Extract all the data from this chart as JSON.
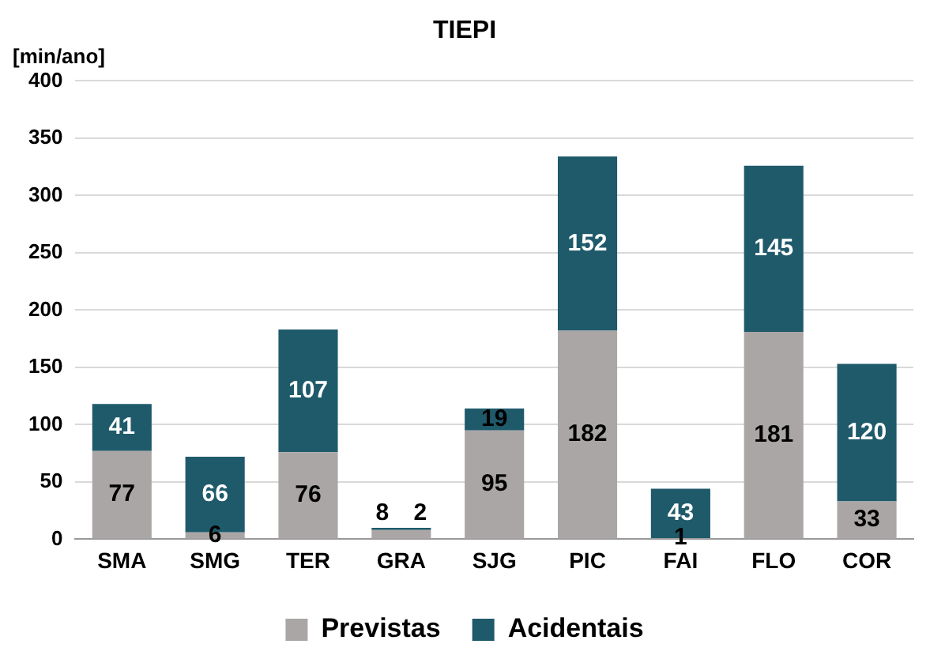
{
  "chart_data": {
    "type": "bar",
    "title": "TIEPI",
    "ylabel": "[min/ano]",
    "categories": [
      "SMA",
      "SMG",
      "TER",
      "GRA",
      "SJG",
      "PIC",
      "FAI",
      "FLO",
      "COR"
    ],
    "series": [
      {
        "name": "Previstas",
        "color": "#aba6a6",
        "values": [
          77,
          6,
          76,
          8,
          95,
          182,
          1,
          181,
          33
        ]
      },
      {
        "name": "Acidentais",
        "color": "#1f5a6b",
        "values": [
          41,
          66,
          107,
          2,
          19,
          152,
          43,
          145,
          120
        ]
      }
    ],
    "stacked": true,
    "ylim": [
      0,
      400
    ],
    "yticks": [
      0,
      50,
      100,
      150,
      200,
      250,
      300,
      350,
      400
    ],
    "grid": "y",
    "legend": "bottom",
    "data_labels": true
  }
}
